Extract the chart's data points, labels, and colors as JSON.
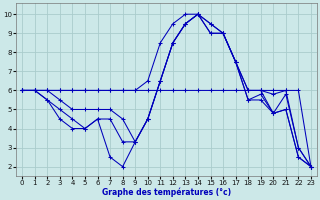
{
  "title": "Graphe des températures (°c)",
  "background_color": "#cce8e8",
  "grid_color": "#aacccc",
  "line_color": "#0000bb",
  "xlim": [
    -0.5,
    23.5
  ],
  "ylim": [
    1.5,
    10.6
  ],
  "xticks": [
    0,
    1,
    2,
    3,
    4,
    5,
    6,
    7,
    8,
    9,
    10,
    11,
    12,
    13,
    14,
    15,
    16,
    17,
    18,
    19,
    20,
    21,
    22,
    23
  ],
  "yticks": [
    2,
    3,
    4,
    5,
    6,
    7,
    8,
    9,
    10
  ],
  "series": [
    [
      6,
      6,
      6,
      6,
      6,
      6,
      6,
      6,
      6,
      6,
      6,
      6,
      6,
      6,
      6,
      6,
      6,
      6,
      6,
      6,
      6,
      6,
      6,
      2
    ],
    [
      6,
      6,
      6,
      6,
      6,
      6,
      6,
      6,
      6,
      6,
      6.5,
      8.5,
      9.5,
      10,
      10,
      9,
      9,
      7.5,
      6,
      6,
      5.8,
      6,
      3,
      2
    ],
    [
      6,
      6,
      6,
      5.5,
      5,
      5,
      5,
      5,
      4.5,
      3.3,
      4.5,
      6.5,
      8.5,
      9.5,
      10,
      9.5,
      9,
      7.5,
      6,
      6,
      4.8,
      5.8,
      3,
      2
    ],
    [
      6,
      6,
      5.5,
      5,
      4.5,
      4,
      4.5,
      4.5,
      3.3,
      3.3,
      4.5,
      6.5,
      8.5,
      9.5,
      10,
      9.5,
      9,
      7.5,
      5.5,
      5.8,
      4.8,
      5,
      2.5,
      2
    ],
    [
      6,
      6,
      5.5,
      4.5,
      4,
      4,
      4.5,
      2.5,
      2,
      3.3,
      4.5,
      6.5,
      8.5,
      9.5,
      10,
      9,
      9,
      7.5,
      5.5,
      5.5,
      4.8,
      5,
      2.5,
      2
    ]
  ]
}
